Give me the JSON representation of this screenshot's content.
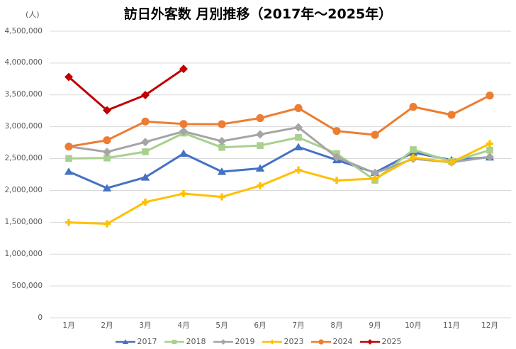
{
  "title": "訪日外客数 月別推移（2017年～2025年）",
  "chart_data": {
    "type": "line",
    "title": "訪日外客数 月別推移（2017年～2025年）",
    "ylabel": "(人)",
    "xlabel": "",
    "categories": [
      "1月",
      "2月",
      "3月",
      "4月",
      "5月",
      "6月",
      "7月",
      "8月",
      "9月",
      "10月",
      "11月",
      "12月"
    ],
    "series": [
      {
        "name": "2017",
        "color": "#4472C4",
        "marker": "triangle",
        "values": [
          2295700,
          2035800,
          2205700,
          2578970,
          2294700,
          2346500,
          2681500,
          2477500,
          2279700,
          2595200,
          2477600,
          2521300
        ]
      },
      {
        "name": "2018",
        "color": "#A9D08E",
        "marker": "square",
        "values": [
          2501400,
          2509300,
          2607600,
          2900700,
          2675400,
          2704600,
          2832000,
          2578000,
          2159600,
          2640600,
          2453000,
          2632600
        ]
      },
      {
        "name": "2019",
        "color": "#A5A5A5",
        "marker": "diamond",
        "values": [
          2689400,
          2604300,
          2760100,
          2926700,
          2773100,
          2880000,
          2991200,
          2520100,
          2272900,
          2496600,
          2441300,
          2526000
        ]
      },
      {
        "name": "2023",
        "color": "#FFC000",
        "marker": "plus",
        "values": [
          1497300,
          1475300,
          1817500,
          1949100,
          1898900,
          2073300,
          2320600,
          2156900,
          2184300,
          2516500,
          2440800,
          2734000
        ]
      },
      {
        "name": "2024",
        "color": "#ED7D31",
        "marker": "circle",
        "values": [
          2688100,
          2788000,
          3081600,
          3042900,
          3040100,
          3135600,
          3292500,
          2933000,
          2872200,
          3312000,
          3187000,
          3489800
        ]
      },
      {
        "name": "2025",
        "color": "#C00000",
        "marker": "diamond",
        "values": [
          3781200,
          3258400,
          3497600,
          3908900,
          null,
          null,
          null,
          null,
          null,
          null,
          null,
          null
        ]
      }
    ],
    "ylim": [
      0,
      4500000
    ],
    "ytick_interval": 500000,
    "ytick_labels": [
      "0",
      "500,000",
      "1,000,000",
      "1,500,000",
      "2,000,000",
      "2,500,000",
      "3,000,000",
      "3,500,000",
      "4,000,000",
      "4,500,000"
    ],
    "grid": true,
    "legend_position": "bottom",
    "legend_labels": [
      "2017",
      "2018",
      "2019",
      "2023",
      "2024",
      "2025"
    ]
  },
  "colors": {
    "background": "#FFFFFF",
    "grid": "#D9D9D9",
    "axis_line": "#D9D9D9",
    "tick_text": "#595959",
    "title_text": "#000000"
  }
}
